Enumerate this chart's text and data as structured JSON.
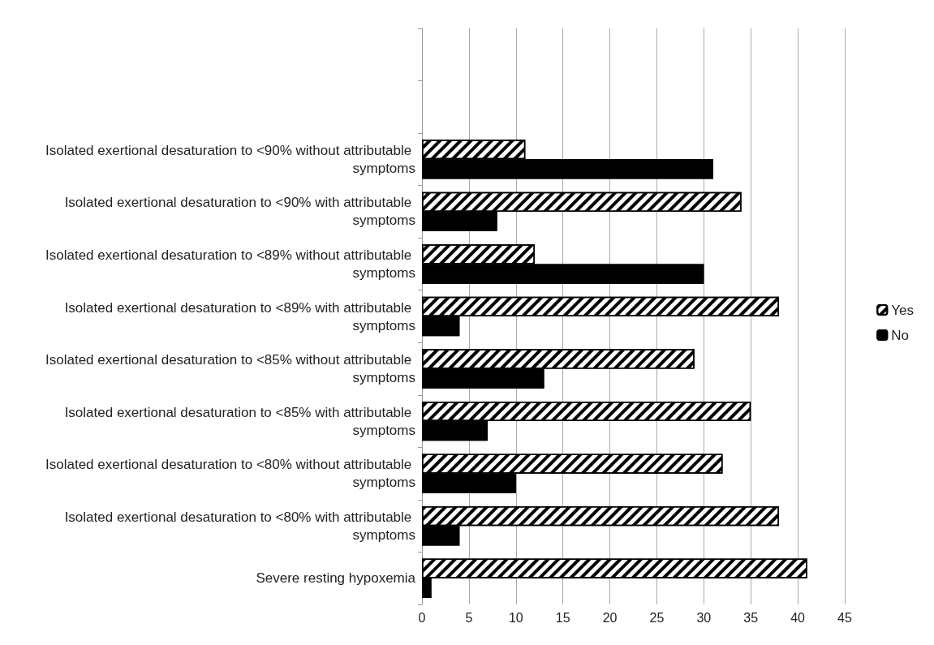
{
  "chart_data": {
    "type": "bar",
    "orientation": "horizontal",
    "categories": [
      null,
      null,
      "Isolated exertional desaturation to <90% without attributable symptoms",
      "Isolated exertional desaturation to <90% with attributable symptoms",
      "Isolated exertional desaturation to <89% without attributable symptoms",
      "Isolated exertional desaturation to <89% with attributable symptoms",
      "Isolated exertional desaturation to <85% without attributable symptoms",
      "Isolated exertional desaturation to <85% with attributable symptoms",
      "Isolated exertional desaturation to <80% without attributable symptoms",
      "Isolated exertional desaturation to <80% with attributable symptoms",
      "Severe resting hypoxemia"
    ],
    "series": [
      {
        "name": "Yes",
        "color": "#ffffff",
        "values": [
          null,
          null,
          11,
          34,
          12,
          38,
          29,
          35,
          32,
          38,
          41
        ]
      },
      {
        "name": "No",
        "color": "#000000",
        "values": [
          null,
          null,
          31,
          8,
          30,
          4,
          13,
          7,
          10,
          4,
          1
        ]
      }
    ],
    "xlim": [
      0,
      45
    ],
    "xticks": [
      0,
      5,
      10,
      15,
      20,
      25,
      30,
      35,
      40,
      45
    ],
    "grid": "x",
    "legend": "right"
  }
}
